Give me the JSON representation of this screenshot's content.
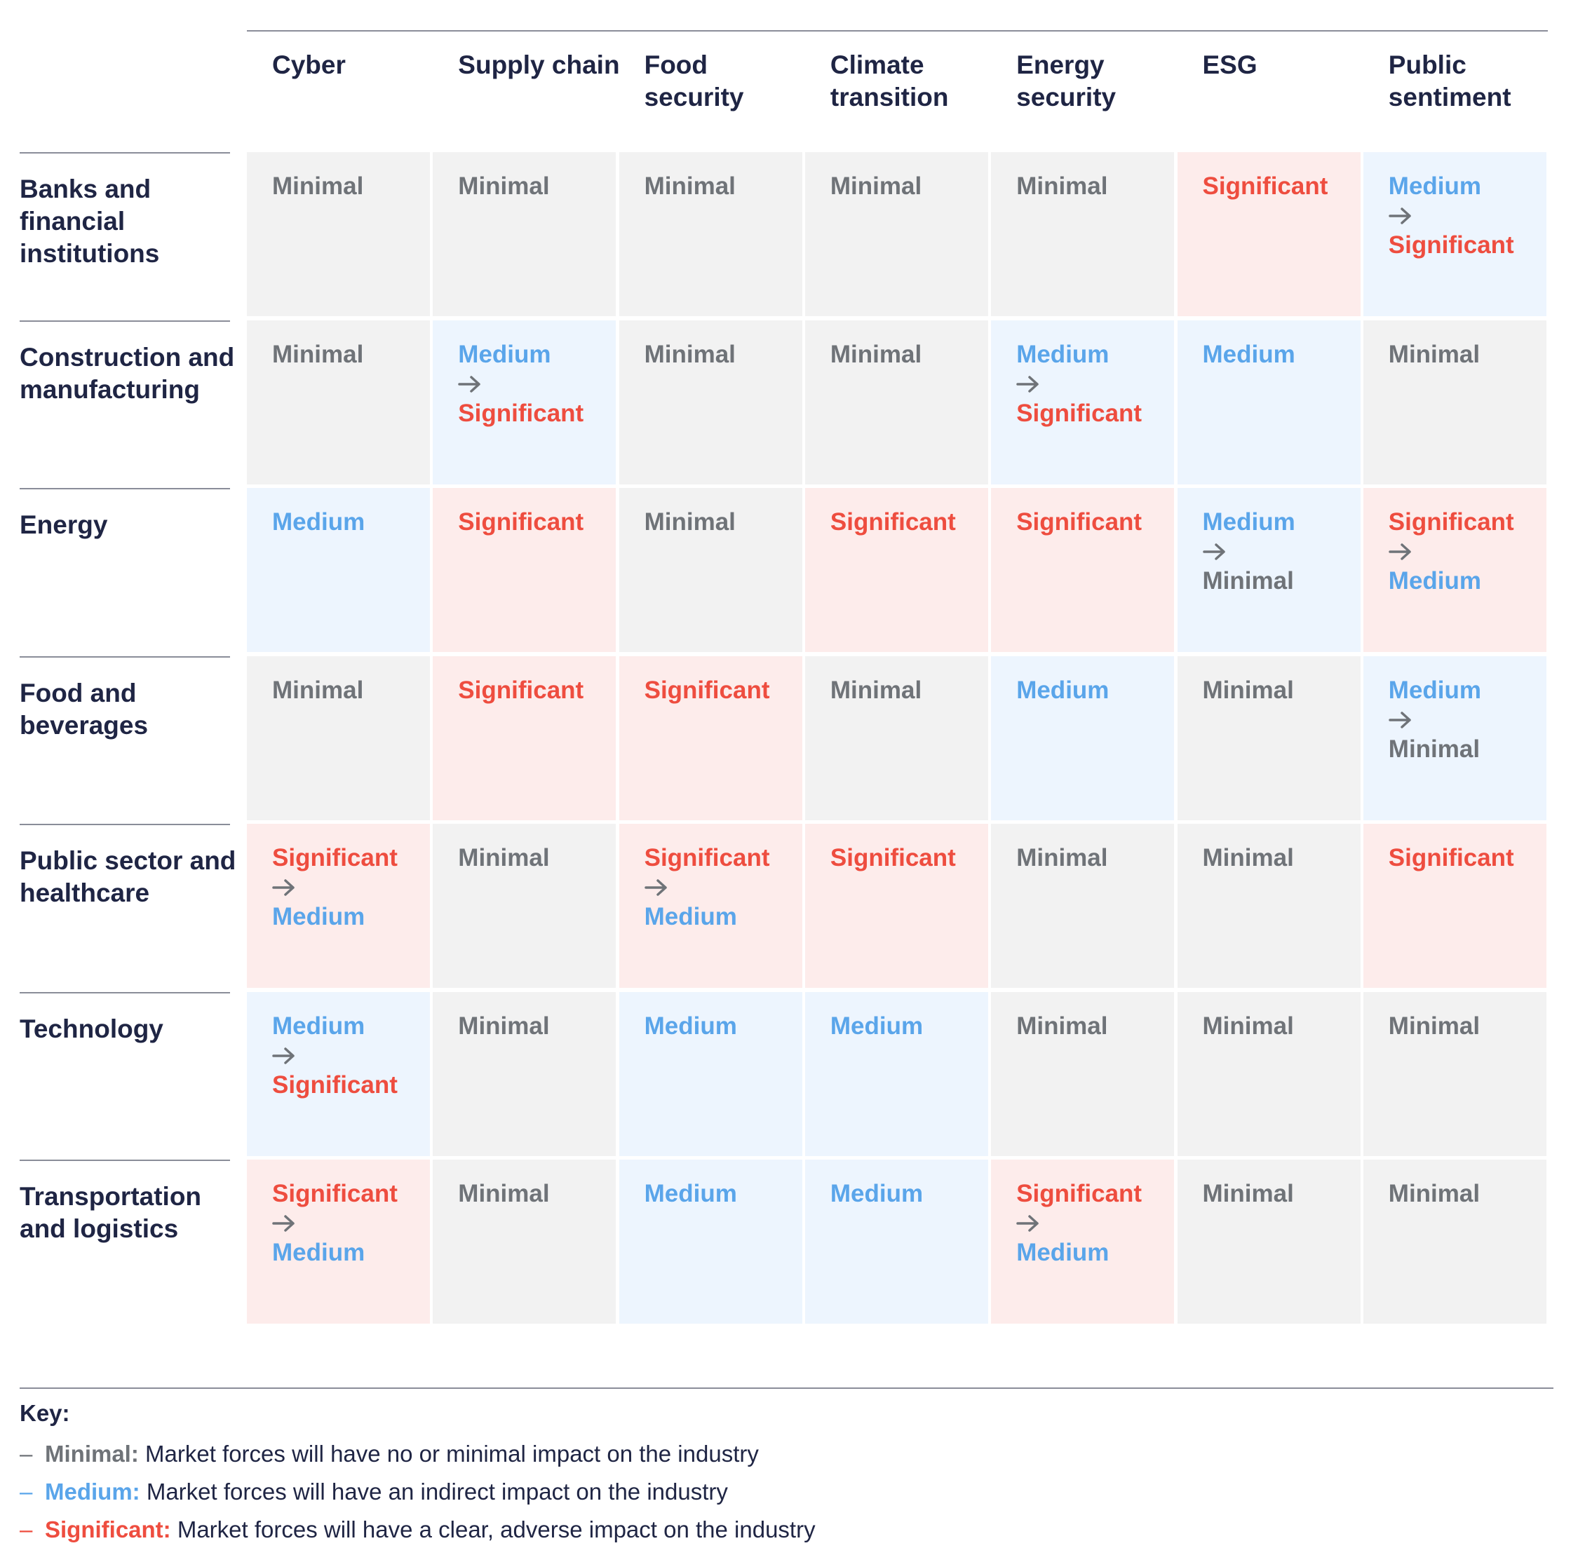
{
  "chart_data": {
    "type": "table",
    "columns": [
      "Cyber",
      "Supply chain",
      "Food security",
      "Climate transition",
      "Energy security",
      "ESG",
      "Public sentiment"
    ],
    "rows": [
      {
        "label": "Banks and financial institutions",
        "cells": [
          [
            "Minimal"
          ],
          [
            "Minimal"
          ],
          [
            "Minimal"
          ],
          [
            "Minimal"
          ],
          [
            "Minimal"
          ],
          [
            "Significant"
          ],
          [
            "Medium",
            "Significant"
          ]
        ]
      },
      {
        "label": "Construction and manufacturing",
        "cells": [
          [
            "Minimal"
          ],
          [
            "Medium",
            "Significant"
          ],
          [
            "Minimal"
          ],
          [
            "Minimal"
          ],
          [
            "Medium",
            "Significant"
          ],
          [
            "Medium"
          ],
          [
            "Minimal"
          ]
        ]
      },
      {
        "label": "Energy",
        "cells": [
          [
            "Medium"
          ],
          [
            "Significant"
          ],
          [
            "Minimal"
          ],
          [
            "Significant"
          ],
          [
            "Significant"
          ],
          [
            "Medium",
            "Minimal"
          ],
          [
            "Significant",
            "Medium"
          ]
        ]
      },
      {
        "label": "Food and beverages",
        "cells": [
          [
            "Minimal"
          ],
          [
            "Significant"
          ],
          [
            "Significant"
          ],
          [
            "Minimal"
          ],
          [
            "Medium"
          ],
          [
            "Minimal"
          ],
          [
            "Medium",
            "Minimal"
          ]
        ]
      },
      {
        "label": "Public sector and healthcare",
        "cells": [
          [
            "Significant",
            "Medium"
          ],
          [
            "Minimal"
          ],
          [
            "Significant",
            "Medium"
          ],
          [
            "Significant"
          ],
          [
            "Minimal"
          ],
          [
            "Minimal"
          ],
          [
            "Significant"
          ]
        ]
      },
      {
        "label": "Technology",
        "cells": [
          [
            "Medium",
            "Significant"
          ],
          [
            "Minimal"
          ],
          [
            "Medium"
          ],
          [
            "Medium"
          ],
          [
            "Minimal"
          ],
          [
            "Minimal"
          ],
          [
            "Minimal"
          ]
        ]
      },
      {
        "label": "Transportation and logistics",
        "cells": [
          [
            "Significant",
            "Medium"
          ],
          [
            "Minimal"
          ],
          [
            "Medium"
          ],
          [
            "Medium"
          ],
          [
            "Significant",
            "Medium"
          ],
          [
            "Minimal"
          ],
          [
            "Minimal"
          ]
        ]
      }
    ],
    "colors": {
      "Minimal": {
        "text": "#6f7378",
        "fill": "#f2f2f2"
      },
      "Medium": {
        "text": "#5aa5ea",
        "fill": "#edf5fe"
      },
      "Significant": {
        "text": "#ee4d3f",
        "fill": "#fdeceb"
      }
    }
  },
  "key": {
    "title": "Key:",
    "dash": "–",
    "items": [
      {
        "level": "Minimal",
        "term": "Minimal:",
        "description": "Market forces will have no or minimal impact on the industry"
      },
      {
        "level": "Medium",
        "term": "Medium:",
        "description": "Market forces will have an indirect impact on the industry"
      },
      {
        "level": "Significant",
        "term": "Significant:",
        "description": "Market forces will have a clear, adverse impact on the industry"
      }
    ]
  }
}
